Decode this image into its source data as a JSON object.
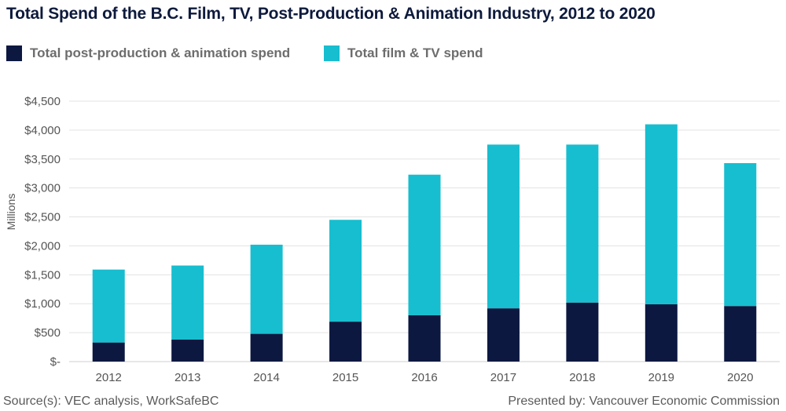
{
  "chart_data": {
    "type": "bar",
    "stacked": true,
    "title": "Total Spend of the B.C. Film, TV, Post-Production & Animation Industry, 2012 to 2020",
    "ylabel": "Millions",
    "xlabel": "",
    "categories": [
      "2012",
      "2013",
      "2014",
      "2015",
      "2016",
      "2017",
      "2018",
      "2019",
      "2020"
    ],
    "series": [
      {
        "name": "Total post-production & animation spend",
        "color": "#0c1840",
        "values": [
          330,
          380,
          480,
          690,
          800,
          920,
          1020,
          990,
          960
        ]
      },
      {
        "name": "Total film & TV spend",
        "color": "#17becf",
        "values": [
          1260,
          1280,
          1540,
          1760,
          2430,
          2830,
          2730,
          3110,
          2470
        ]
      }
    ],
    "ylim": [
      0,
      4500
    ],
    "yticks": [
      0,
      500,
      1000,
      1500,
      2000,
      2500,
      3000,
      3500,
      4000,
      4500
    ],
    "ytick_labels": [
      "$-",
      "$500",
      "$1,000",
      "$1,500",
      "$2,000",
      "$2,500",
      "$3,000",
      "$3,500",
      "$4,000",
      "$4,500"
    ],
    "grid": true,
    "legend_position": "top-left"
  },
  "footer": {
    "source": "Source(s): VEC analysis, WorkSafeBC",
    "presenter": "Presented by: Vancouver Economic Commission"
  }
}
